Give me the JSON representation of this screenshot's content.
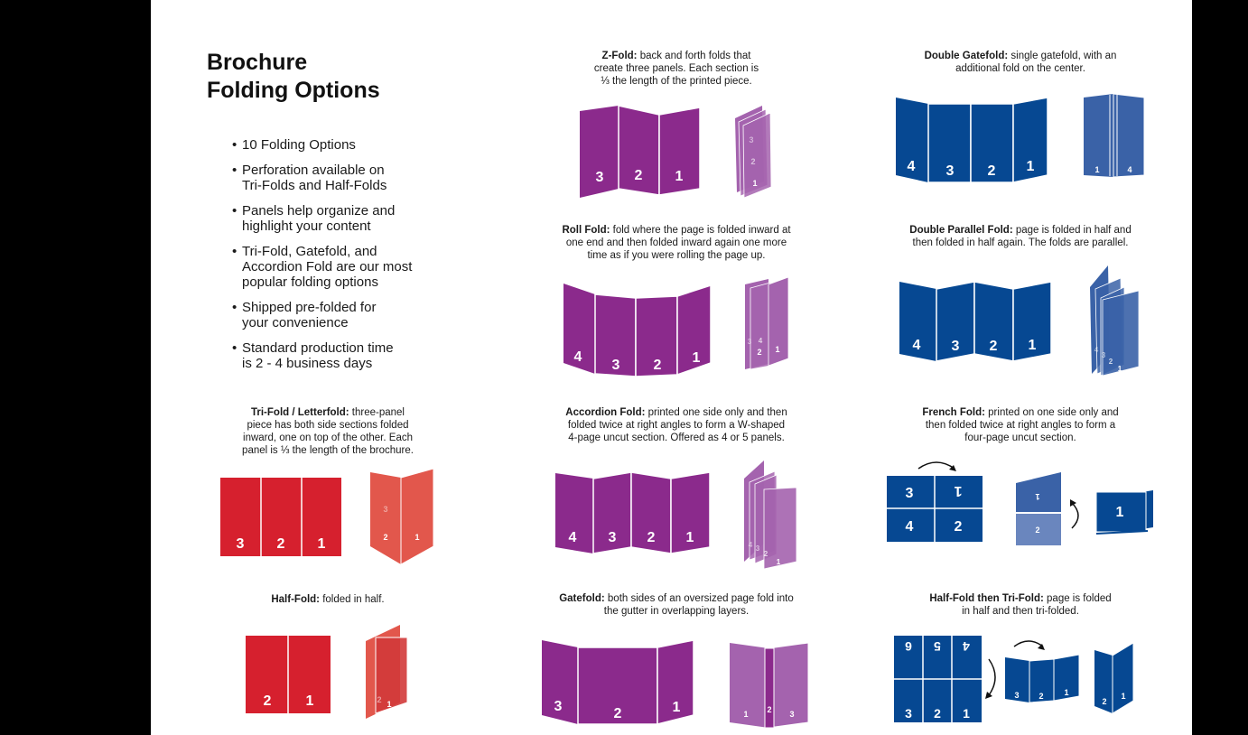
{
  "colors": {
    "red": "#d6202e",
    "red_light": "#e2574c",
    "purple": "#8b2a8c",
    "purple_light": "#a463ae",
    "blue": "#064892",
    "blue_light": "#3a62a7"
  },
  "heading": {
    "title": "Brochure\nFolding Options"
  },
  "bullets": [
    "10 Folding Options",
    "Perforation available on\nTri-Folds and Half-Folds",
    "Panels help organize and\nhighlight your content",
    "Tri-Fold, Gatefold, and\nAccordion Fold are our most\npopular folding options",
    "Shipped pre-folded for\nyour convenience",
    "Standard production time\nis 2 - 4 business days"
  ],
  "folds": {
    "trifold": {
      "name": "Tri-Fold / Letterfold:",
      "desc": " three-panel\npiece has both side sections folded\ninward, one on top of the other. Each\npanel is ⅓ the length of the brochure.",
      "flat_labels": [
        "3",
        "2",
        "1"
      ],
      "folded_labels": [
        "3",
        "2",
        "1"
      ]
    },
    "halffold": {
      "name": "Half-Fold:",
      "desc": " folded in half.",
      "flat_labels": [
        "2",
        "1"
      ],
      "folded_labels": [
        "2",
        "1"
      ]
    },
    "zfold": {
      "name": "Z-Fold:",
      "desc": " back and forth folds that\ncreate three panels. Each section is\n⅓ the length of the printed piece.",
      "flat_labels": [
        "3",
        "2",
        "1"
      ],
      "folded_labels": [
        "3",
        "2",
        "1"
      ]
    },
    "rollfold": {
      "name": "Roll Fold:",
      "desc": " fold where the page is folded inward at\none end and then folded inward again one more\ntime as if you were rolling the page up.",
      "flat_labels": [
        "4",
        "3",
        "2",
        "1"
      ],
      "folded_labels": [
        "3",
        "4",
        "2",
        "1"
      ]
    },
    "accordion": {
      "name": "Accordion Fold:",
      "desc": " printed one side only and then\nfolded twice at right angles to form a W-shaped\n4-page uncut section. Offered as 4 or 5 panels.",
      "flat_labels": [
        "4",
        "3",
        "2",
        "1"
      ],
      "folded_labels": [
        "4",
        "3",
        "2",
        "1"
      ]
    },
    "gatefold": {
      "name": "Gatefold:",
      "desc": " both sides of an oversized page fold into\nthe gutter in overlapping layers.",
      "flat_labels": [
        "3",
        "2",
        "1"
      ],
      "folded_labels": [
        "1",
        "2",
        "3"
      ]
    },
    "doublegate": {
      "name": "Double Gatefold:",
      "desc": " single gatefold, with an\nadditional fold on the center.",
      "flat_labels": [
        "4",
        "3",
        "2",
        "1"
      ],
      "folded_labels": [
        "1",
        "4"
      ]
    },
    "doubleparallel": {
      "name": "Double Parallel Fold:",
      "desc": " page is folded in half and\nthen folded in half again. The folds are parallel.",
      "flat_labels": [
        "4",
        "3",
        "2",
        "1"
      ],
      "folded_labels": [
        "4",
        "3",
        "2",
        "1"
      ]
    },
    "french": {
      "name": "French Fold:",
      "desc": " printed on one side only and\nthen folded twice at right angles to form a\nfour-page uncut section.",
      "grid_labels": [
        "3",
        "1",
        "4",
        "2"
      ],
      "half_labels": [
        "1",
        "2"
      ],
      "final_label": "1"
    },
    "halftri": {
      "name": "Half-Fold then Tri-Fold:",
      "desc": " page is folded\nin half and then tri-folded.",
      "grid_labels": [
        "6",
        "5",
        "4",
        "3",
        "2",
        "1"
      ],
      "mid_labels": [
        "3",
        "2",
        "1"
      ],
      "final_labels": [
        "2",
        "1"
      ]
    }
  }
}
